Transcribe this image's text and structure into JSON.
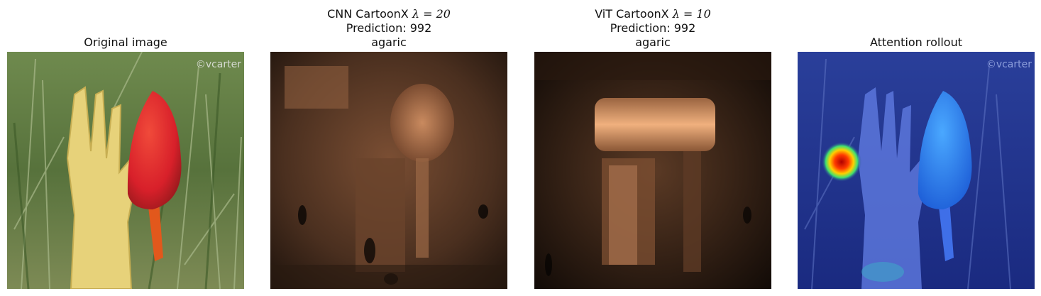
{
  "panels": [
    {
      "id": "original",
      "title_lines": [
        "Original image"
      ],
      "image": "photo of red mushroom and yellow coral fungus in grass",
      "watermark": "©vcarter"
    },
    {
      "id": "cnn",
      "title_prefix": "CNN CartoonX ",
      "title_lambda": "λ = 20",
      "prediction": "Prediction: 992",
      "label": "agaric",
      "image": "copper-toned CartoonX mask"
    },
    {
      "id": "vit",
      "title_prefix": "ViT CartoonX ",
      "title_lambda": "λ = 10",
      "prediction": "Prediction: 992",
      "label": "agaric",
      "image": "copper-toned CartoonX mask"
    },
    {
      "id": "rollout",
      "title_lines": [
        "Attention rollout"
      ],
      "image": "blue attention rollout overlay with red hotspot",
      "watermark": "©vcarter"
    }
  ]
}
